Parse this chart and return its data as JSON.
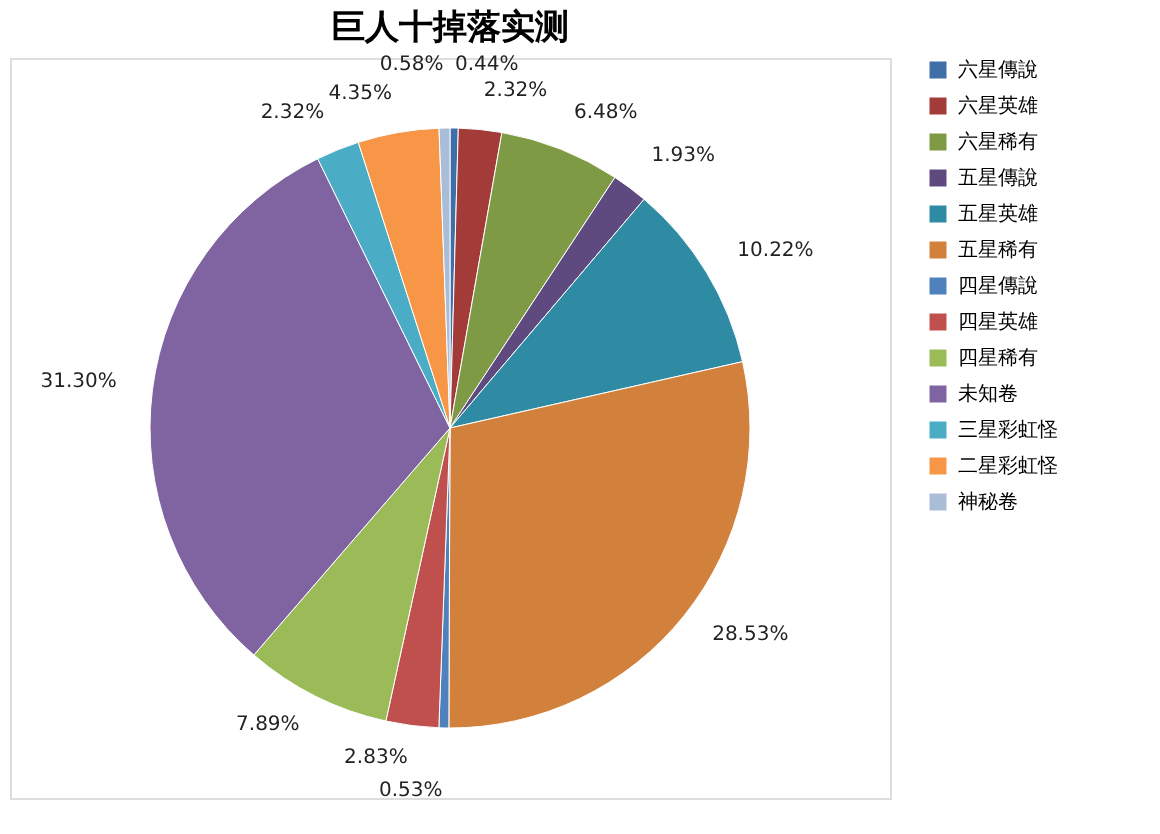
{
  "chart_data": {
    "type": "pie",
    "title": "巨人十掉落实测",
    "categories": [
      "六星傳說",
      "六星英雄",
      "六星稀有",
      "五星傳說",
      "五星英雄",
      "五星稀有",
      "四星傳說",
      "四星英雄",
      "四星稀有",
      "未知卷",
      "三星彩虹怪",
      "二星彩虹怪",
      "神秘卷"
    ],
    "values": [
      0.44,
      2.32,
      6.48,
      1.93,
      10.22,
      28.53,
      0.53,
      2.83,
      7.89,
      31.3,
      2.32,
      4.35,
      0.58
    ],
    "value_labels": [
      "0.44%",
      "2.32%",
      "6.48%",
      "1.93%",
      "10.22%",
      "28.53%",
      "0.53%",
      "2.83%",
      "7.89%",
      "31.30%",
      "2.32%",
      "4.35%",
      "0.58%"
    ],
    "colors": [
      "#3f6fa8",
      "#a33b38",
      "#7f9a45",
      "#5f4a80",
      "#2f8aa3",
      "#d2813c",
      "#4f81bd",
      "#c0504d",
      "#9bbb59",
      "#8064a2",
      "#4bacc6",
      "#f79646",
      "#a9bcd8"
    ],
    "legend": "right"
  }
}
